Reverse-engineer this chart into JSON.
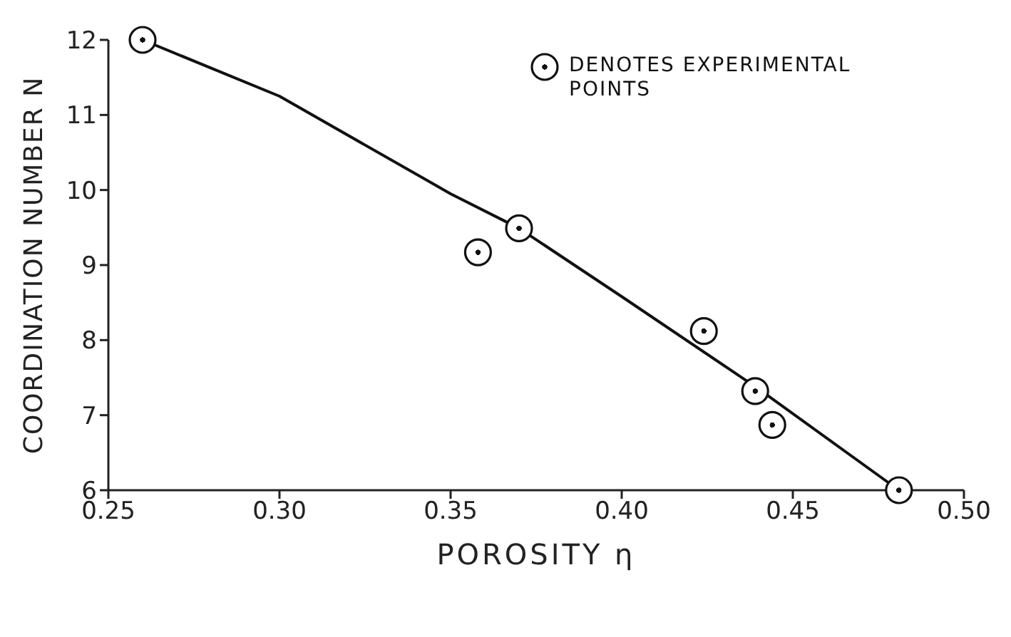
{
  "chart_data": {
    "type": "scatter",
    "xlabel": "POROSITY η",
    "ylabel": "COORDINATION NUMBER N",
    "xlim": [
      0.25,
      0.5
    ],
    "ylim": [
      6,
      12
    ],
    "xticks": [
      0.25,
      {
        "value": 0.3,
        "label": "0.30"
      },
      0.35,
      {
        "value": 0.4,
        "label": "0.40"
      },
      0.45,
      {
        "value": 0.5,
        "label": "0.50"
      }
    ],
    "yticks": [
      6,
      7,
      8,
      9,
      10,
      11,
      12
    ],
    "legend": "top right",
    "series": [
      {
        "name": "DENOTES EXPERIMENTAL POINTS",
        "marker": "circle",
        "color": "#111111",
        "x": [
          0.26,
          0.358,
          0.37,
          0.424,
          0.439,
          0.444,
          0.481
        ],
        "values": [
          12,
          9.17,
          9.49,
          8.12,
          7.32,
          6.87,
          6.0
        ]
      },
      {
        "type": "line",
        "color": "#111111",
        "x": [
          0.26,
          0.3,
          0.35,
          0.37,
          0.4,
          0.44,
          0.481
        ],
        "values": [
          12,
          11.25,
          9.95,
          9.49,
          8.58,
          7.35,
          6.0
        ]
      }
    ]
  }
}
